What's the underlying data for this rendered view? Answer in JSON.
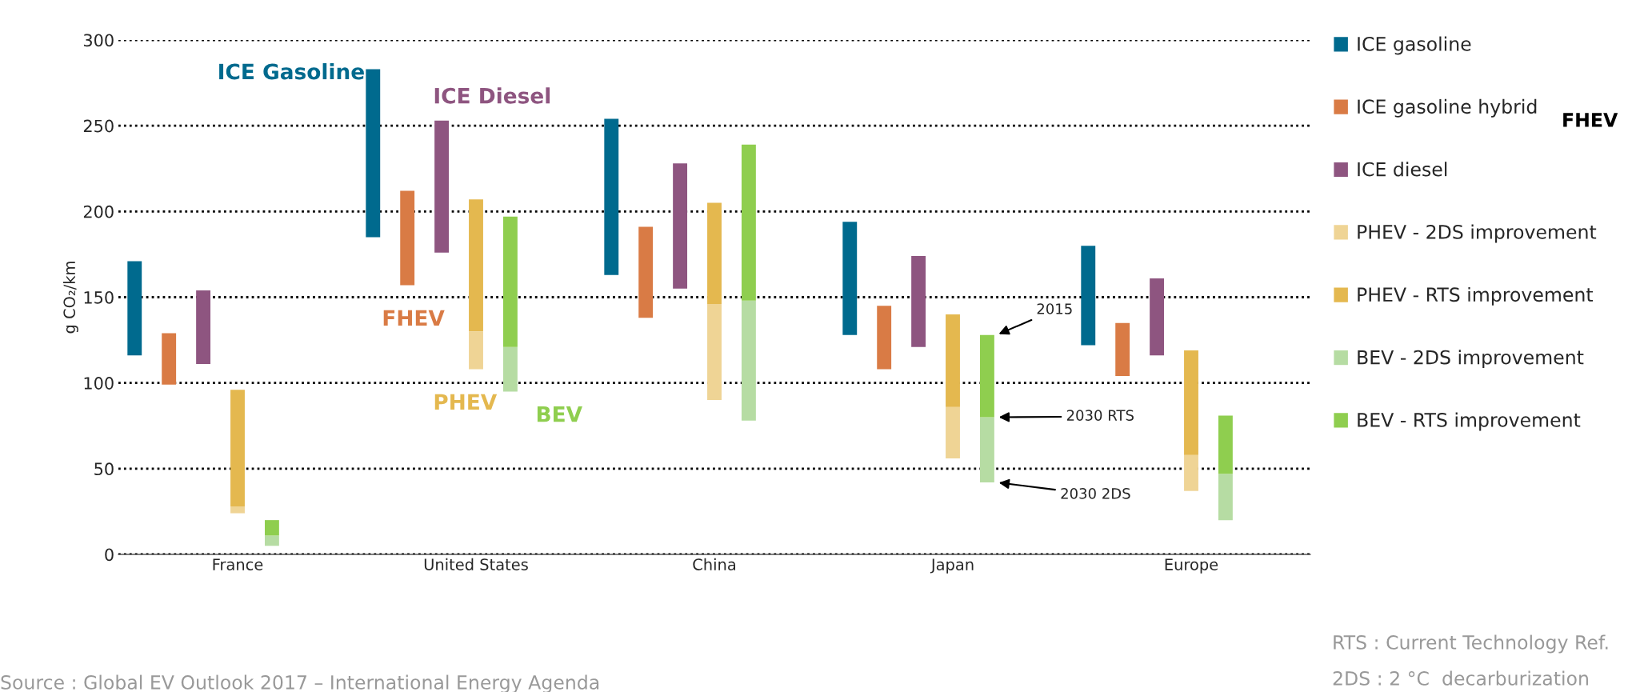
{
  "chart_data": {
    "type": "bar",
    "ylabel": "g CO₂/km",
    "categories": [
      "France",
      "United States",
      "China",
      "Japan",
      "Europe"
    ],
    "ylim": [
      0,
      300
    ],
    "yticks": [
      0,
      50,
      100,
      150,
      200,
      250,
      300
    ],
    "grid": "y",
    "legend": "right",
    "series": [
      {
        "name": "ICE gasoline",
        "color": "#006a8e",
        "base": [
          116,
          185,
          163,
          128,
          122
        ],
        "values": [
          55,
          98,
          91,
          66,
          58
        ]
      },
      {
        "name": "ICE gasoline hybrid",
        "color": "#d97b45",
        "base": [
          99,
          157,
          138,
          108,
          104
        ],
        "values": [
          30,
          55,
          53,
          37,
          31
        ]
      },
      {
        "name": "ICE diesel",
        "color": "#8e5580",
        "base": [
          111,
          176,
          155,
          121,
          116
        ],
        "values": [
          43,
          77,
          73,
          53,
          45
        ]
      },
      {
        "name": "PHEV - 2DS improvement",
        "color": "#efd495",
        "base": [
          24,
          108,
          90,
          56,
          37
        ],
        "values": [
          4,
          22,
          56,
          30,
          21
        ]
      },
      {
        "name": "PHEV - RTS improvement",
        "color": "#e4b84f",
        "base": [
          28,
          130,
          146,
          86,
          58
        ],
        "values": [
          68,
          77,
          59,
          54,
          61
        ]
      },
      {
        "name": "BEV - 2DS improvement",
        "color": "#b6dca3",
        "base": [
          5,
          95,
          78,
          42,
          20
        ],
        "values": [
          6,
          26,
          70,
          38,
          27
        ]
      },
      {
        "name": "BEV - RTS improvement",
        "color": "#8fce4f",
        "base": [
          11,
          121,
          148,
          80,
          47
        ],
        "values": [
          9,
          76,
          91,
          48,
          34
        ]
      }
    ],
    "annotations": [
      "ICE Gasoline",
      "ICE Diesel",
      "FHEV",
      "PHEV",
      "BEV",
      "2015",
      "2030 RTS",
      "2030 2DS",
      "FHEV",
      "Source : Global EV Outlook 2017 – International Energy Agenda",
      "RTS : Current Technology Ref.",
      "2DS : 2 °C  decarburization"
    ]
  }
}
